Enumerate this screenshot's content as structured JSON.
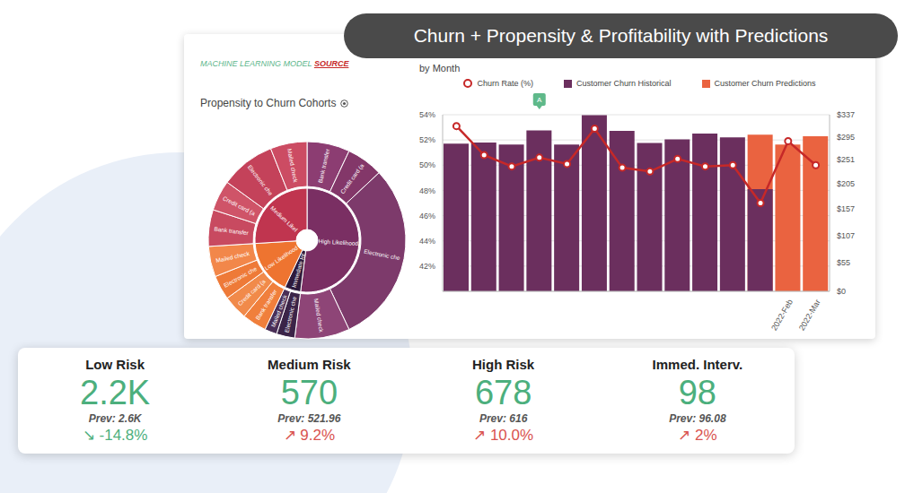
{
  "title": "Churn + Propensity & Profitability with Predictions",
  "source": {
    "label": "MACHINE LEARNING MODEL",
    "link": "SOURCE"
  },
  "chart_data": [
    {
      "type": "sunburst",
      "title": "Propensity to Churn Cohorts",
      "groups": [
        {
          "name": "High Likelihood",
          "color": "#7a2f63",
          "children": [
            {
              "name": "Bank transfer",
              "value": 7,
              "color": "#8c3d72"
            },
            {
              "name": "Credit card (a",
              "value": 6,
              "color": "#833769"
            },
            {
              "name": "Electronic che",
              "value": 30,
              "color": "#7d3a6b"
            },
            {
              "name": "Mailed check",
              "value": 9,
              "color": "#8e4577"
            }
          ]
        },
        {
          "name": "Immediate Int",
          "color": "#2e1b3c",
          "children": [
            {
              "name": "Electronic che",
              "value": 3,
              "color": "#3b2448"
            },
            {
              "name": "Mailed check",
              "value": 2,
              "color": "#4a2f57"
            }
          ]
        },
        {
          "name": "Low Likelihood",
          "color": "#ee7430",
          "children": [
            {
              "name": "Bank transfer",
              "value": 4,
              "color": "#f07f3c"
            },
            {
              "name": "Credit card (a",
              "value": 4,
              "color": "#f18a4a"
            },
            {
              "name": "Electronic che",
              "value": 4,
              "color": "#ee7a38"
            },
            {
              "name": "Mailed check",
              "value": 5,
              "color": "#f2874a"
            }
          ]
        },
        {
          "name": "Medium Likel",
          "color": "#c0354f",
          "children": [
            {
              "name": "Bank transfer",
              "value": 6,
              "color": "#c84a60"
            },
            {
              "name": "Credit card (a",
              "value": 5,
              "color": "#cf5468"
            },
            {
              "name": "Electronic che",
              "value": 9,
              "color": "#c4425a"
            },
            {
              "name": "Mailed check",
              "value": 6,
              "color": "#cc4c63"
            }
          ]
        }
      ]
    },
    {
      "type": "combo",
      "title": "by Month",
      "categories": [
        null,
        null,
        null,
        null,
        null,
        null,
        null,
        null,
        null,
        null,
        null,
        null,
        "2022-Feb",
        "2022-Mar"
      ],
      "series": [
        {
          "name": "Churn Rate (%)",
          "type": "line",
          "color": "#c62828",
          "marker": "circle",
          "values": [
            53.1,
            50.8,
            49.9,
            50.6,
            50.1,
            52.9,
            49.8,
            49.5,
            50.5,
            49.9,
            50.0,
            47.0,
            51.9,
            50.0
          ]
        },
        {
          "name": "Customer Churn Historical",
          "type": "bar",
          "axis": "y2",
          "color": "#6b2f5e",
          "values": [
            282,
            284,
            280,
            307,
            280,
            336,
            306,
            283,
            290,
            301,
            294,
            195,
            null,
            null
          ]
        },
        {
          "name": "Customer Churn Predictions",
          "type": "bar",
          "axis": "y2",
          "color": "#ea6340",
          "values": [
            null,
            null,
            null,
            null,
            null,
            null,
            null,
            null,
            null,
            null,
            null,
            299,
            280,
            296
          ]
        }
      ],
      "ylim": [
        40,
        54
      ],
      "yticks": [
        {
          "value": 42,
          "label": "42%"
        },
        {
          "value": 44,
          "label": "44%"
        },
        {
          "value": 46,
          "label": "46%"
        },
        {
          "value": 48,
          "label": "48%"
        },
        {
          "value": 50,
          "label": "50%"
        },
        {
          "value": 52,
          "label": "52%"
        },
        {
          "value": 54,
          "label": "54%"
        }
      ],
      "y2lim": [
        0,
        337
      ],
      "y2ticks": [
        {
          "value": 0,
          "label": "$0"
        },
        {
          "value": 55,
          "label": "$55"
        },
        {
          "value": 107,
          "label": "$107"
        },
        {
          "value": 157,
          "label": "$157"
        },
        {
          "value": 205,
          "label": "$205"
        },
        {
          "value": 251,
          "label": "$251"
        },
        {
          "value": 295,
          "label": "$295"
        },
        {
          "value": 337,
          "label": "$337"
        }
      ],
      "grid": true,
      "legend": "top",
      "annotations": [
        {
          "text": "A",
          "position": 3
        }
      ]
    }
  ],
  "kpis": [
    {
      "label": "Low Risk",
      "value": "2.2K",
      "prev": "Prev: 2.6K",
      "change": "↘ -14.8%",
      "change_color": "#4caf7d"
    },
    {
      "label": "Medium Risk",
      "value": "570",
      "prev": "Prev: 521.96",
      "change": "↗ 9.2%",
      "change_color": "#d9534f"
    },
    {
      "label": "High Risk",
      "value": "678",
      "prev": "Prev: 616",
      "change": "↗ 10.0%",
      "change_color": "#d9534f"
    },
    {
      "label": "Immed. Interv.",
      "value": "98",
      "prev": "Prev: 96.08",
      "change": "↗ 2%",
      "change_color": "#d9534f"
    }
  ]
}
